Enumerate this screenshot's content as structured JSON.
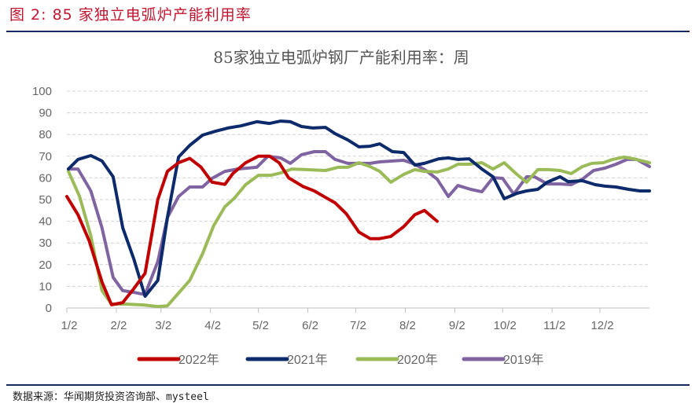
{
  "figure_title": "图 2: 85 家独立电弧炉产能利用率",
  "source": "数据来源：华闻期货投资咨询部、mysteel",
  "chart_data": {
    "type": "line",
    "title": "85家独立电弧炉钢厂产能利用率：周",
    "xlabel": "",
    "ylabel": "",
    "x_unit": "days since 1/2",
    "xlim": [
      0,
      365
    ],
    "ylim": [
      0,
      100
    ],
    "y_ticks": [
      0,
      10,
      20,
      30,
      40,
      50,
      60,
      70,
      80,
      90,
      100
    ],
    "x_ticks": [
      {
        "label": "1/2",
        "day": 0
      },
      {
        "label": "2/2",
        "day": 31
      },
      {
        "label": "3/2",
        "day": 59
      },
      {
        "label": "4/2",
        "day": 90
      },
      {
        "label": "5/2",
        "day": 120
      },
      {
        "label": "6/2",
        "day": 151
      },
      {
        "label": "7/2",
        "day": 181
      },
      {
        "label": "8/2",
        "day": 212
      },
      {
        "label": "9/2",
        "day": 243
      },
      {
        "label": "10/2",
        "day": 273
      },
      {
        "label": "11/2",
        "day": 304
      },
      {
        "label": "12/2",
        "day": 334
      }
    ],
    "grid": true,
    "legend_position": "bottom",
    "series": [
      {
        "name": "2022年",
        "color": "#c00000",
        "points": [
          [
            0,
            51.4
          ],
          [
            7,
            43
          ],
          [
            14,
            31
          ],
          [
            22,
            12
          ],
          [
            28,
            1.5
          ],
          [
            35,
            2.5
          ],
          [
            42,
            9
          ],
          [
            49,
            16
          ],
          [
            57,
            50
          ],
          [
            63,
            63
          ],
          [
            70,
            67
          ],
          [
            77,
            69
          ],
          [
            84,
            65
          ],
          [
            91,
            58
          ],
          [
            99,
            57
          ],
          [
            104,
            62
          ],
          [
            112,
            67
          ],
          [
            120,
            70
          ],
          [
            127,
            70
          ],
          [
            133,
            67
          ],
          [
            139,
            60
          ],
          [
            148,
            56
          ],
          [
            155,
            54
          ],
          [
            162,
            51
          ],
          [
            168,
            48.5
          ],
          [
            175,
            43.5
          ],
          [
            183,
            35
          ],
          [
            190,
            32
          ],
          [
            196,
            32
          ],
          [
            203,
            33
          ],
          [
            211,
            37.5
          ],
          [
            218,
            43
          ],
          [
            224,
            45
          ],
          [
            232,
            40
          ]
        ]
      },
      {
        "name": "2021年",
        "color": "#0d2a6b",
        "points": [
          [
            1,
            64.1
          ],
          [
            7,
            68.5
          ],
          [
            15,
            70.3
          ],
          [
            22,
            67.8
          ],
          [
            29,
            60.5
          ],
          [
            35,
            37
          ],
          [
            42,
            22.5
          ],
          [
            49,
            5.4
          ],
          [
            57,
            12.7
          ],
          [
            63,
            41.7
          ],
          [
            70,
            69.6
          ],
          [
            77,
            75
          ],
          [
            85,
            79.7
          ],
          [
            93,
            81.5
          ],
          [
            101,
            83
          ],
          [
            109,
            84
          ],
          [
            119,
            85.9
          ],
          [
            127,
            85.1
          ],
          [
            134,
            86.2
          ],
          [
            140,
            85.9
          ],
          [
            147,
            83.7
          ],
          [
            154,
            83
          ],
          [
            162,
            83.3
          ],
          [
            168,
            80.4
          ],
          [
            176,
            77.5
          ],
          [
            183,
            74.3
          ],
          [
            190,
            74.6
          ],
          [
            196,
            75.7
          ],
          [
            204,
            72.1
          ],
          [
            211,
            71.7
          ],
          [
            218,
            65.9
          ],
          [
            224,
            66.7
          ],
          [
            233,
            68.8
          ],
          [
            239,
            69.2
          ],
          [
            245,
            68.5
          ],
          [
            252,
            68.8
          ],
          [
            260,
            64.1
          ],
          [
            267,
            60.5
          ],
          [
            274,
            50.4
          ],
          [
            282,
            52.9
          ],
          [
            288,
            54
          ],
          [
            295,
            54.7
          ],
          [
            301,
            58
          ],
          [
            309,
            60.5
          ],
          [
            314,
            58.3
          ],
          [
            323,
            58.7
          ],
          [
            331,
            56.9
          ],
          [
            337,
            56.2
          ],
          [
            344,
            55.8
          ],
          [
            352,
            54.7
          ],
          [
            359,
            54
          ],
          [
            365,
            54
          ]
        ]
      },
      {
        "name": "2020年",
        "color": "#9bbb59",
        "points": [
          [
            1,
            63
          ],
          [
            8,
            51.4
          ],
          [
            15,
            33.3
          ],
          [
            22,
            8
          ],
          [
            28,
            1.8
          ],
          [
            37,
            1.8
          ],
          [
            48,
            1.4
          ],
          [
            57,
            0.7
          ],
          [
            63,
            1
          ],
          [
            70,
            6.9
          ],
          [
            77,
            12.7
          ],
          [
            85,
            25
          ],
          [
            92,
            38
          ],
          [
            99,
            46.7
          ],
          [
            105,
            50.7
          ],
          [
            112,
            56.9
          ],
          [
            120,
            61.2
          ],
          [
            128,
            61.2
          ],
          [
            134,
            62.3
          ],
          [
            141,
            64.1
          ],
          [
            150,
            63.8
          ],
          [
            162,
            63.4
          ],
          [
            170,
            64.9
          ],
          [
            176,
            64.9
          ],
          [
            183,
            67
          ],
          [
            190,
            65.2
          ],
          [
            196,
            63
          ],
          [
            203,
            58
          ],
          [
            211,
            61.6
          ],
          [
            218,
            63.8
          ],
          [
            224,
            63
          ],
          [
            232,
            62.7
          ],
          [
            239,
            64.1
          ],
          [
            245,
            66.3
          ],
          [
            252,
            66.3
          ],
          [
            260,
            67
          ],
          [
            267,
            64.1
          ],
          [
            274,
            67
          ],
          [
            282,
            61.6
          ],
          [
            288,
            58
          ],
          [
            295,
            63.8
          ],
          [
            302,
            63.8
          ],
          [
            309,
            63.4
          ],
          [
            316,
            62
          ],
          [
            323,
            65.2
          ],
          [
            329,
            66.7
          ],
          [
            336,
            67
          ],
          [
            342,
            68.5
          ],
          [
            349,
            69.6
          ],
          [
            355,
            68.8
          ],
          [
            365,
            67
          ]
        ]
      },
      {
        "name": "2019年",
        "color": "#8064a2",
        "points": [
          [
            1,
            64.1
          ],
          [
            7,
            64.1
          ],
          [
            15,
            54
          ],
          [
            22,
            37
          ],
          [
            29,
            14.1
          ],
          [
            35,
            8
          ],
          [
            42,
            7.2
          ],
          [
            49,
            6.2
          ],
          [
            57,
            21.4
          ],
          [
            63,
            41.7
          ],
          [
            70,
            51.4
          ],
          [
            77,
            55.8
          ],
          [
            85,
            55.8
          ],
          [
            91,
            59.8
          ],
          [
            99,
            63
          ],
          [
            107,
            64.1
          ],
          [
            119,
            64.9
          ],
          [
            126,
            70
          ],
          [
            134,
            69.2
          ],
          [
            140,
            66.7
          ],
          [
            147,
            70.7
          ],
          [
            155,
            72.1
          ],
          [
            162,
            72.1
          ],
          [
            168,
            68.5
          ],
          [
            176,
            66.7
          ],
          [
            183,
            66.7
          ],
          [
            190,
            66.7
          ],
          [
            196,
            67.4
          ],
          [
            211,
            68.1
          ],
          [
            218,
            66.3
          ],
          [
            225,
            63.4
          ],
          [
            232,
            59.4
          ],
          [
            239,
            51.4
          ],
          [
            245,
            56.5
          ],
          [
            253,
            54.7
          ],
          [
            260,
            53.6
          ],
          [
            267,
            60.1
          ],
          [
            273,
            59.8
          ],
          [
            280,
            52.5
          ],
          [
            288,
            60.5
          ],
          [
            293,
            60.5
          ],
          [
            301,
            57.2
          ],
          [
            309,
            57.2
          ],
          [
            316,
            56.9
          ],
          [
            323,
            59.4
          ],
          [
            330,
            63.4
          ],
          [
            337,
            64.5
          ],
          [
            344,
            66.3
          ],
          [
            351,
            68.5
          ],
          [
            357,
            68.5
          ],
          [
            365,
            65.2
          ]
        ]
      }
    ]
  }
}
